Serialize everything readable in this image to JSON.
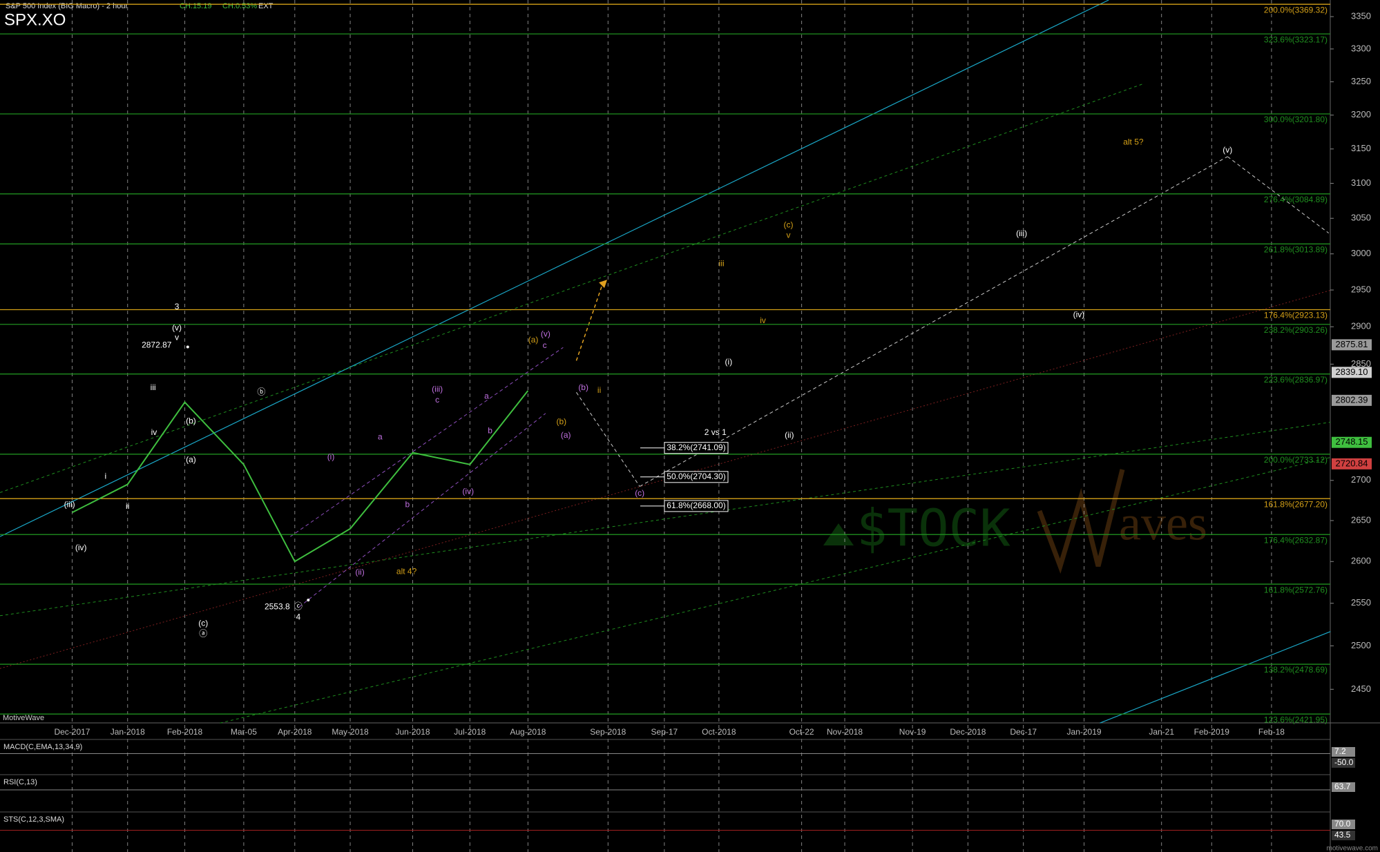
{
  "header": {
    "title": "S&P 500 Index (BIG Macro) - 2 hour",
    "change": "CH:15.19",
    "change_pct": "CH:0.53%",
    "session": "EXT",
    "symbol": "SPX.XO"
  },
  "chart_data": {
    "type": "line",
    "scale": "log",
    "categories": [
      "Dec-2017",
      "Jan-2018",
      "Feb-2018",
      "Mar-05",
      "Apr-2018",
      "May-2018",
      "Jun-2018",
      "Jul-2018",
      "Aug-2018",
      "Sep-2018",
      "Sep-17",
      "Oct-2018",
      "Oct-22",
      "Nov-2018",
      "Nov-19",
      "Dec-2018",
      "Dec-17",
      "Jan-2019",
      "Jan-21",
      "Feb-2019",
      "Feb-18"
    ],
    "series": [
      {
        "name": "SPX.XO",
        "color": "#3fbf3f",
        "values": [
          2660,
          2695,
          2800,
          2720,
          2600,
          2640,
          2735,
          2720,
          2815,
          null,
          null,
          null,
          null,
          null,
          null,
          null,
          null,
          null,
          null,
          null,
          null
        ]
      }
    ],
    "ylim": [
      2412,
      3376
    ],
    "yticks": [
      2450,
      2500,
      2550,
      2600,
      2650,
      2700,
      2850,
      2900,
      2950,
      3000,
      3050,
      3100,
      3150,
      3200,
      3250,
      3300,
      3350
    ],
    "fib_levels": [
      {
        "value": 3369.32,
        "label": "200.0%(3369.32)",
        "color": "#d4a017"
      },
      {
        "value": 3323.17,
        "label": "323.6%(3323.17)",
        "color": "#1f8f1f"
      },
      {
        "value": 3201.8,
        "label": "300.0%(3201.80)",
        "color": "#1f8f1f"
      },
      {
        "value": 3084.89,
        "label": "276.4%(3084.89)",
        "color": "#1f8f1f"
      },
      {
        "value": 3013.89,
        "label": "261.8%(3013.89)",
        "color": "#1f8f1f"
      },
      {
        "value": 2923.13,
        "label": "176.4%(2923.13)",
        "color": "#d4a017"
      },
      {
        "value": 2903.26,
        "label": "238.2%(2903.26)",
        "color": "#1f8f1f"
      },
      {
        "value": 2836.97,
        "label": "223.6%(2836.97)",
        "color": "#1f8f1f"
      },
      {
        "value": 2733.12,
        "label": "200.0%(2733.12)",
        "color": "#1f8f1f"
      },
      {
        "value": 2677.2,
        "label": "161.8%(2677.20)",
        "color": "#d4a017"
      },
      {
        "value": 2632.87,
        "label": "176.4%(2632.87)",
        "color": "#1f8f1f"
      },
      {
        "value": 2572.76,
        "label": "161.8%(2572.76)",
        "color": "#1f8f1f"
      },
      {
        "value": 2478.69,
        "label": "138.2%(2478.69)",
        "color": "#1f8f1f"
      },
      {
        "value": 2421.95,
        "label": "123.6%(2421.95)",
        "color": "#1f8f1f"
      }
    ],
    "retracements": [
      {
        "value": 2741.09,
        "label": "38.2%(2741.09)"
      },
      {
        "value": 2704.3,
        "label": "50.0%(2704.30)"
      },
      {
        "value": 2668.0,
        "label": "61.8%(2668.00)"
      }
    ],
    "price_markers": [
      {
        "value": 2875.81,
        "label": "2875.81",
        "color": "#9a9a9a"
      },
      {
        "value": 2839.1,
        "label": "2839.10",
        "color": "#cfcfcf"
      },
      {
        "value": 2802.39,
        "label": "2802.39",
        "color": "#9a9a9a"
      },
      {
        "value": 2748.15,
        "label": "2748.15",
        "color": "#3fbf3f"
      },
      {
        "value": 2720.84,
        "label": "2720.84",
        "color": "#d04040"
      }
    ],
    "pivots": [
      2872.87,
      2553.8
    ],
    "annotations": [
      {
        "text": "3",
        "color": "#ffffff"
      },
      {
        "text": "(v)",
        "color": "#ffffff"
      },
      {
        "text": "v",
        "color": "#ffffff"
      },
      {
        "text": "iii",
        "color": "#ffffff"
      },
      {
        "text": "iv",
        "color": "#ffffff"
      },
      {
        "text": "(b)",
        "color": "#ffffff"
      },
      {
        "text": "(a)",
        "color": "#ffffff"
      },
      {
        "text": "(c)",
        "color": "#ffffff"
      },
      {
        "text": "i",
        "color": "#ffffff"
      },
      {
        "text": "(iii)",
        "color": "#ffffff"
      },
      {
        "text": "(iv)",
        "color": "#ffffff"
      },
      {
        "text": "ii",
        "color": "#ffffff"
      },
      {
        "text": "4",
        "color": "#ffffff"
      },
      {
        "text": "ⓑ",
        "color": "#ffffff"
      },
      {
        "text": "ⓒ",
        "color": "#ffffff"
      },
      {
        "text": "ⓐ",
        "color": "#ffffff"
      },
      {
        "text": "(i)",
        "color": "#c070e0"
      },
      {
        "text": "(ii)",
        "color": "#c070e0"
      },
      {
        "text": "alt 4?",
        "color": "#d4a017"
      },
      {
        "text": "(iii)",
        "color": "#c070e0"
      },
      {
        "text": "c",
        "color": "#c070e0"
      },
      {
        "text": "a",
        "color": "#c070e0"
      },
      {
        "text": "b",
        "color": "#c070e0"
      },
      {
        "text": "(iv)",
        "color": "#c070e0"
      },
      {
        "text": "a",
        "color": "#c070e0"
      },
      {
        "text": "b",
        "color": "#c070e0"
      },
      {
        "text": "(a)",
        "color": "#d4a017"
      },
      {
        "text": "(v)",
        "color": "#c070e0"
      },
      {
        "text": "c",
        "color": "#c070e0"
      },
      {
        "text": "(b)",
        "color": "#c070e0"
      },
      {
        "text": "ii",
        "color": "#d4a017"
      },
      {
        "text": "(b)",
        "color": "#d4a017"
      },
      {
        "text": "(a)",
        "color": "#c070e0"
      },
      {
        "text": "(c)",
        "color": "#c070e0"
      },
      {
        "text": "2 vs 1",
        "color": "#ffffff"
      },
      {
        "text": "(ii)",
        "color": "#ffffff"
      },
      {
        "text": "(i)",
        "color": "#ffffff"
      },
      {
        "text": "iii",
        "color": "#d4a017"
      },
      {
        "text": "iv",
        "color": "#d4a017"
      },
      {
        "text": "v",
        "color": "#d4a017"
      },
      {
        "text": "(c)",
        "color": "#d4a017"
      },
      {
        "text": "(iii)",
        "color": "#ffffff"
      },
      {
        "text": "(iv)",
        "color": "#ffffff"
      },
      {
        "text": "alt 5?",
        "color": "#d4a017"
      },
      {
        "text": "(v)",
        "color": "#ffffff"
      }
    ],
    "indicators": [
      {
        "label": "MACD(C,EMA,13,34,9)",
        "values": [
          {
            "value": 7.2,
            "label": "7.2"
          },
          {
            "value": -50,
            "label": "-50.0"
          }
        ]
      },
      {
        "label": "RSI(C,13)",
        "values": [
          {
            "value": 63.7,
            "label": "63.7"
          }
        ]
      },
      {
        "label": "STS(C,12,3,SMA)",
        "values": [
          {
            "value": 70,
            "label": "70.0"
          },
          {
            "value": 43.5,
            "label": "43.5"
          }
        ]
      }
    ]
  },
  "footer": "MotiveWave",
  "watermark": [
    "$TOCK",
    "aves"
  ],
  "site": "motivewave.com"
}
